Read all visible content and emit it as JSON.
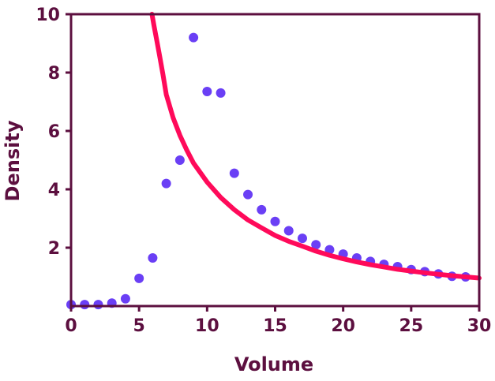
{
  "chart_data": {
    "type": "scatter",
    "title": "",
    "xlabel": "Volume",
    "ylabel": "Density",
    "xlim": [
      0,
      30
    ],
    "ylim": [
      0,
      10
    ],
    "x_ticks": [
      0,
      5,
      10,
      15,
      20,
      25,
      30
    ],
    "y_ticks": [
      2,
      4,
      6,
      8,
      10
    ],
    "grid": false,
    "colors": {
      "axis": "#5c0f3f",
      "points": "#6a3ff5",
      "curve": "#ff0a5a"
    },
    "series": [
      {
        "type": "scatter",
        "x": [
          0,
          1,
          2,
          3,
          4,
          5,
          6,
          7,
          8,
          9,
          10,
          11,
          12,
          13,
          14,
          15,
          16,
          17,
          18,
          19,
          20,
          21,
          22,
          23,
          24,
          25,
          26,
          27,
          28,
          29
        ],
        "y": [
          0.05,
          0.05,
          0.05,
          0.1,
          0.25,
          0.95,
          1.65,
          4.2,
          5.0,
          9.2,
          7.35,
          7.3,
          4.55,
          3.82,
          3.3,
          2.9,
          2.58,
          2.32,
          2.1,
          1.93,
          1.78,
          1.65,
          1.53,
          1.43,
          1.35,
          1.25,
          1.18,
          1.1,
          1.02,
          1.0
        ]
      },
      {
        "type": "line",
        "x": [
          5.95,
          6.1,
          6.3,
          6.5,
          6.75,
          7,
          7.5,
          8,
          8.5,
          9,
          10,
          11,
          12,
          13,
          14,
          15,
          16,
          17,
          18,
          19,
          20,
          21,
          22,
          23,
          24,
          25,
          26,
          27,
          28,
          29,
          30
        ],
        "y": [
          10,
          9.6,
          9.1,
          8.6,
          7.95,
          7.25,
          6.45,
          5.85,
          5.35,
          4.9,
          4.25,
          3.72,
          3.3,
          2.95,
          2.68,
          2.42,
          2.22,
          2.05,
          1.88,
          1.74,
          1.62,
          1.51,
          1.42,
          1.34,
          1.26,
          1.2,
          1.14,
          1.09,
          1.04,
          1.0,
          0.96
        ]
      }
    ]
  }
}
